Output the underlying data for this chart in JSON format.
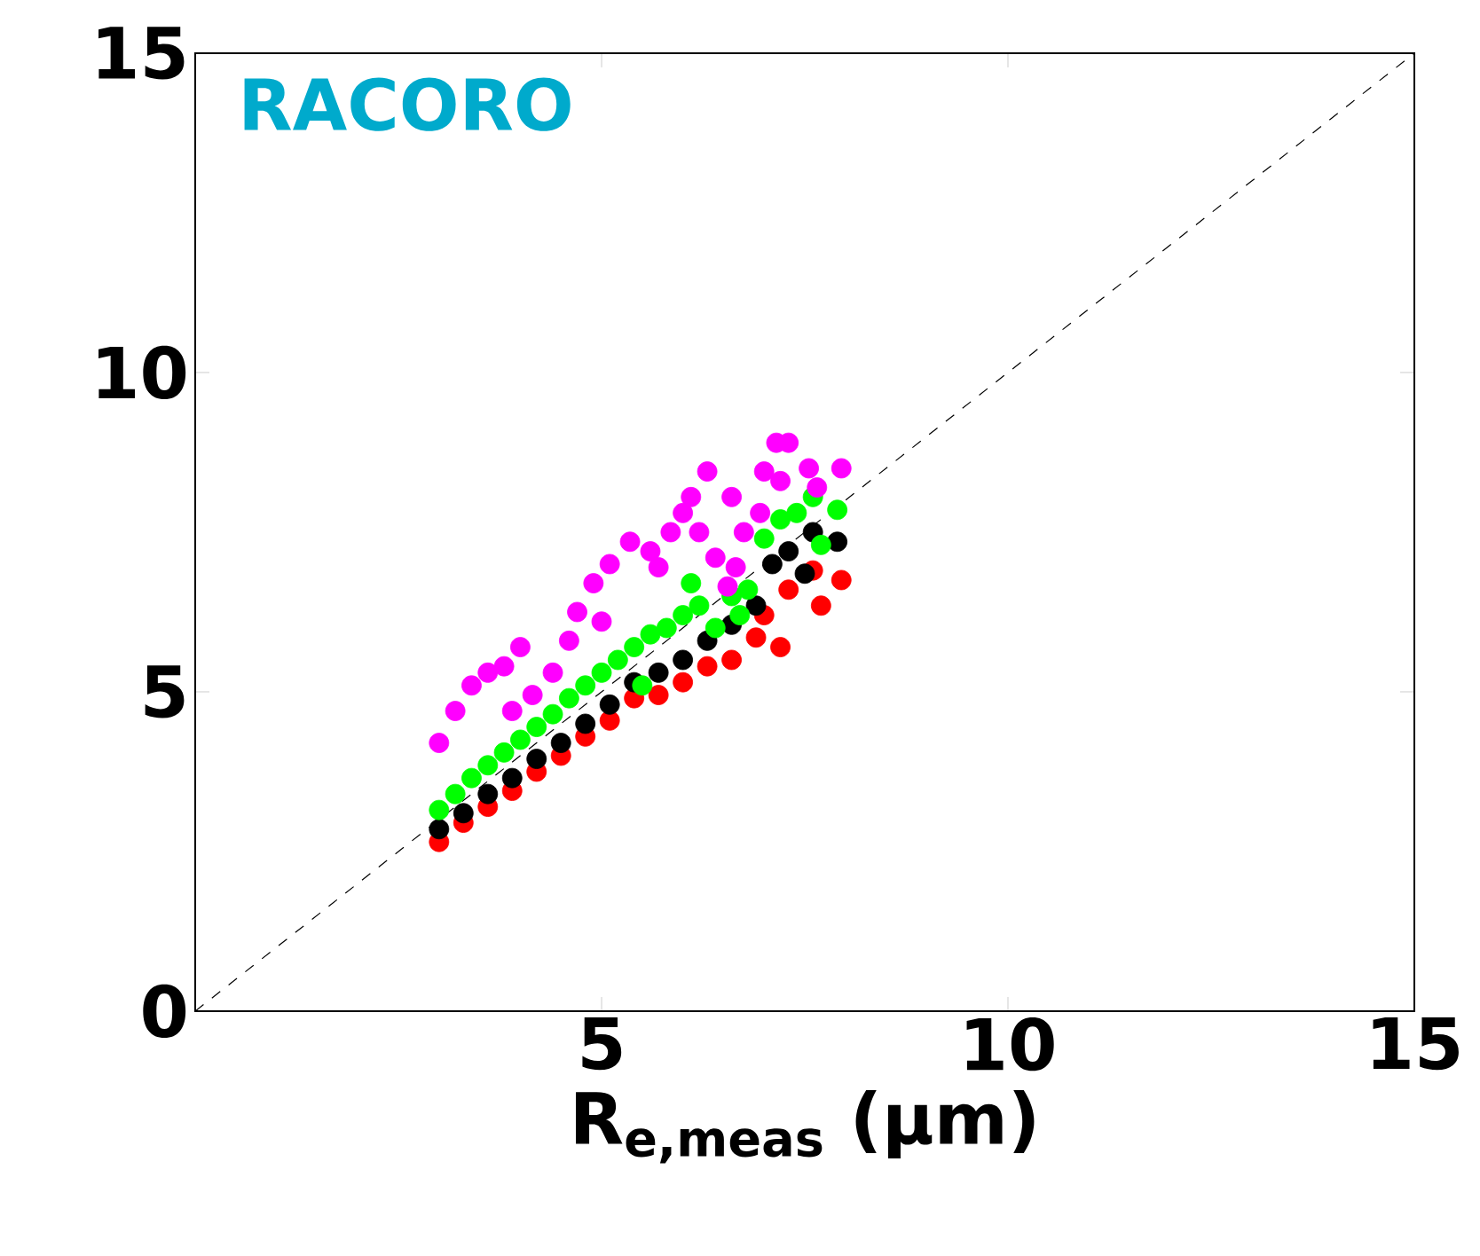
{
  "chart_data": {
    "type": "scatter",
    "title": "RACORO",
    "xlabel": "R$_{e,meas}$ (µm)",
    "xlim": [
      0,
      15
    ],
    "ylim": [
      0,
      15
    ],
    "xticks": [
      {
        "value": 0,
        "label": null
      },
      5,
      10,
      15
    ],
    "yticks": [
      0,
      5,
      10,
      15
    ],
    "grid": false,
    "series": [
      {
        "color": "#ff0000",
        "marker": "circle",
        "x": [
          3.0,
          3.3,
          3.6,
          3.9,
          4.2,
          4.5,
          4.8,
          5.1,
          5.4,
          5.7,
          6.0,
          6.3,
          6.6,
          6.9,
          7.2,
          7.3,
          7.6,
          7.7,
          7.95,
          7.0
        ],
        "values": [
          2.65,
          2.95,
          3.2,
          3.45,
          3.75,
          4.0,
          4.3,
          4.55,
          4.9,
          4.95,
          5.15,
          5.4,
          5.5,
          5.85,
          5.7,
          6.6,
          6.9,
          6.35,
          6.75,
          6.2
        ]
      },
      {
        "color": "#000000",
        "marker": "circle",
        "x": [
          3.0,
          3.3,
          3.6,
          3.9,
          4.2,
          4.5,
          4.8,
          5.1,
          5.4,
          5.7,
          6.0,
          6.3,
          6.6,
          6.9,
          7.1,
          7.3,
          7.6,
          7.9,
          7.5
        ],
        "values": [
          2.85,
          3.1,
          3.4,
          3.65,
          3.95,
          4.2,
          4.5,
          4.8,
          5.15,
          5.3,
          5.5,
          5.8,
          6.05,
          6.35,
          7.0,
          7.2,
          7.5,
          7.35,
          6.85
        ]
      },
      {
        "color": "#00ff00",
        "marker": "circle",
        "x": [
          3.0,
          3.2,
          3.4,
          3.6,
          3.8,
          4.0,
          4.2,
          4.4,
          4.6,
          4.8,
          5.0,
          5.2,
          5.4,
          5.6,
          5.8,
          6.0,
          6.2,
          6.4,
          6.6,
          6.8,
          7.0,
          7.2,
          7.4,
          7.6,
          7.7,
          7.9,
          6.7,
          6.1,
          5.5
        ],
        "values": [
          3.15,
          3.4,
          3.65,
          3.85,
          4.05,
          4.25,
          4.45,
          4.65,
          4.9,
          5.1,
          5.3,
          5.5,
          5.7,
          5.9,
          6.0,
          6.2,
          6.35,
          6.0,
          6.5,
          6.6,
          7.4,
          7.7,
          7.8,
          8.05,
          7.3,
          7.85,
          6.2,
          6.7,
          5.1
        ]
      },
      {
        "color": "#ff00ff",
        "marker": "circle",
        "x": [
          3.0,
          3.2,
          3.4,
          3.6,
          3.8,
          4.0,
          3.9,
          4.15,
          4.4,
          4.6,
          4.7,
          4.9,
          5.0,
          5.1,
          5.35,
          5.6,
          5.7,
          5.85,
          6.0,
          6.1,
          6.3,
          6.2,
          6.4,
          6.55,
          6.65,
          6.75,
          7.0,
          7.15,
          7.3,
          7.55,
          7.65,
          7.95,
          7.2,
          6.95,
          6.6
        ],
        "values": [
          4.2,
          4.7,
          5.1,
          5.3,
          5.4,
          5.7,
          4.7,
          4.95,
          5.3,
          5.8,
          6.25,
          6.7,
          6.1,
          7.0,
          7.35,
          7.2,
          6.95,
          7.5,
          7.8,
          8.05,
          8.45,
          7.5,
          7.1,
          6.65,
          6.95,
          7.5,
          8.45,
          8.9,
          8.9,
          8.5,
          8.2,
          8.5,
          8.3,
          7.8,
          8.05
        ]
      },
      {
        "type": "line",
        "color": "#000000",
        "line_style": "dashed",
        "marker": "none",
        "x": [
          0,
          15
        ],
        "values": [
          0,
          15
        ]
      }
    ]
  }
}
